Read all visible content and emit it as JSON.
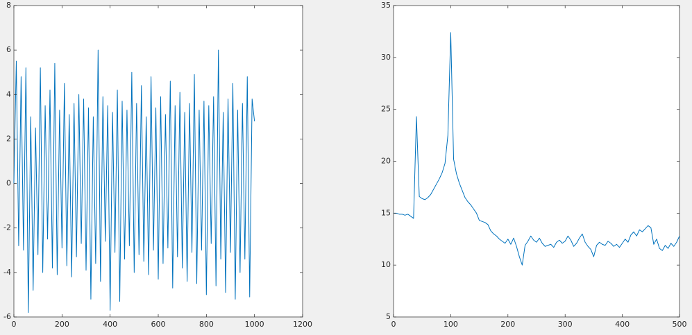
{
  "chart_data": [
    {
      "type": "line",
      "color": "#0072bd",
      "x": [
        0,
        10,
        20,
        30,
        40,
        50,
        60,
        70,
        80,
        90,
        100,
        110,
        120,
        130,
        140,
        150,
        160,
        170,
        180,
        190,
        200,
        210,
        220,
        230,
        240,
        250,
        260,
        270,
        280,
        290,
        300,
        310,
        320,
        330,
        340,
        350,
        360,
        370,
        380,
        390,
        400,
        410,
        420,
        430,
        440,
        450,
        460,
        470,
        480,
        490,
        500,
        510,
        520,
        530,
        540,
        550,
        560,
        570,
        580,
        590,
        600,
        610,
        620,
        630,
        640,
        650,
        660,
        670,
        680,
        690,
        700,
        710,
        720,
        730,
        740,
        750,
        760,
        770,
        780,
        790,
        800,
        810,
        820,
        830,
        840,
        850,
        860,
        870,
        880,
        890,
        900,
        910,
        920,
        930,
        940,
        950,
        960,
        970,
        980,
        990,
        1000
      ],
      "values": [
        0,
        5.5,
        -2.8,
        4.8,
        -3,
        5.2,
        -5.8,
        3,
        -4.8,
        2.5,
        -3.2,
        5.2,
        -4,
        3.5,
        -2.5,
        4.2,
        -3.8,
        5.4,
        -4.1,
        3.3,
        -2.9,
        4.5,
        -3.7,
        3.1,
        -4.2,
        3.6,
        -3.3,
        4,
        -2.7,
        3.8,
        -3.9,
        3.4,
        -5.2,
        3,
        -3.6,
        6,
        -4.4,
        3.9,
        -2.6,
        3.5,
        -5.7,
        3.2,
        -3.1,
        4.2,
        -5.3,
        3.7,
        -3.4,
        3.3,
        -2.8,
        5,
        -4,
        3.6,
        -3.2,
        4.4,
        -3.5,
        3,
        -4.1,
        4.8,
        -3,
        3.4,
        -4.3,
        3.9,
        -3.6,
        3.1,
        -2.9,
        4.6,
        -4.7,
        3.5,
        -3.3,
        4.1,
        -3.8,
        3.2,
        -4.4,
        3.6,
        -3.1,
        4.9,
        -4.5,
        3.3,
        -3,
        3.7,
        -5,
        3.5,
        -2.7,
        3.9,
        -4.6,
        6,
        -3.4,
        3.2,
        -4.9,
        3.8,
        -3.1,
        4.5,
        -5.2,
        3.3,
        -4,
        3.6,
        -3.4,
        4.8,
        -5.1,
        3.8,
        2.8
      ],
      "xlim": [
        0,
        1200
      ],
      "xticks": [
        0,
        200,
        400,
        600,
        800,
        1000,
        1200
      ],
      "ylim": [
        -6,
        8
      ],
      "yticks": [
        -6,
        -4,
        -2,
        0,
        2,
        4,
        6,
        8
      ]
    },
    {
      "type": "line",
      "color": "#0072bd",
      "x": [
        0,
        5,
        10,
        15,
        20,
        25,
        30,
        35,
        40,
        45,
        50,
        55,
        60,
        65,
        70,
        75,
        80,
        85,
        90,
        95,
        100,
        105,
        110,
        115,
        120,
        125,
        130,
        135,
        140,
        145,
        150,
        155,
        160,
        165,
        170,
        175,
        180,
        185,
        190,
        195,
        200,
        205,
        210,
        215,
        220,
        225,
        230,
        235,
        240,
        245,
        250,
        255,
        260,
        265,
        270,
        275,
        280,
        285,
        290,
        295,
        300,
        305,
        310,
        315,
        320,
        325,
        330,
        335,
        340,
        345,
        350,
        355,
        360,
        365,
        370,
        375,
        380,
        385,
        390,
        395,
        400,
        405,
        410,
        415,
        420,
        425,
        430,
        435,
        440,
        445,
        450,
        455,
        460,
        465,
        470,
        475,
        480,
        485,
        490,
        495,
        500
      ],
      "values": [
        15,
        15,
        14.9,
        14.9,
        14.8,
        14.9,
        14.7,
        14.5,
        24.3,
        16.6,
        16.4,
        16.3,
        16.5,
        16.8,
        17.3,
        17.8,
        18.3,
        18.9,
        19.8,
        22.5,
        32.4,
        20.2,
        18.8,
        17.9,
        17.2,
        16.5,
        16.1,
        15.8,
        15.4,
        15,
        14.3,
        14.2,
        14.1,
        13.9,
        13.3,
        13,
        12.8,
        12.5,
        12.3,
        12.1,
        12.5,
        12,
        12.6,
        11.8,
        10.8,
        10,
        11.9,
        12.3,
        12.8,
        12.4,
        12.2,
        12.6,
        12.1,
        11.8,
        11.9,
        12,
        11.7,
        12.2,
        12.4,
        12.1,
        12.3,
        12.8,
        12.4,
        11.8,
        12.1,
        12.6,
        13,
        12.2,
        11.8,
        11.5,
        10.8,
        11.9,
        12.2,
        12,
        11.9,
        12.3,
        12.1,
        11.8,
        12,
        11.7,
        12.1,
        12.5,
        12.2,
        12.9,
        13.2,
        12.8,
        13.4,
        13.2,
        13.5,
        13.8,
        13.6,
        12,
        12.5,
        11.6,
        11.4,
        11.9,
        11.6,
        12.1,
        11.8,
        12.2,
        12.8
      ],
      "xlim": [
        0,
        500
      ],
      "xticks": [
        0,
        100,
        200,
        300,
        400,
        500
      ],
      "ylim": [
        5,
        35
      ],
      "yticks": [
        5,
        10,
        15,
        20,
        25,
        30,
        35
      ]
    }
  ]
}
